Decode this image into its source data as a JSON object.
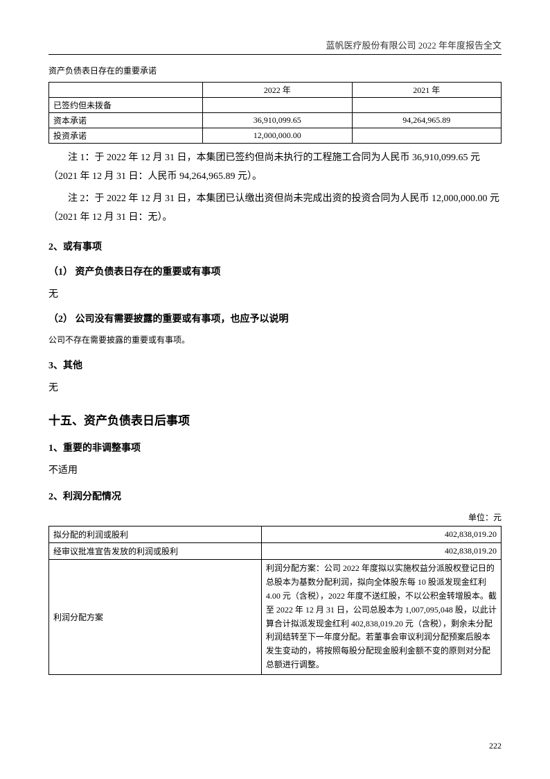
{
  "header": {
    "title": "蓝帆医疗股份有限公司 2022 年年度报告全文"
  },
  "table1": {
    "caption": "资产负债表日存在的重要承诺",
    "columns": [
      "",
      "2022 年",
      "2021 年"
    ],
    "rows": [
      {
        "label": "已签约但未拨备",
        "c2022": "",
        "c2021": ""
      },
      {
        "label": "资本承诺",
        "c2022": "36,910,099.65",
        "c2021": "94,264,965.89"
      },
      {
        "label": "投资承诺",
        "c2022": "12,000,000.00",
        "c2021": ""
      }
    ]
  },
  "notes": {
    "n1": "注 1：于 2022 年 12 月 31 日，本集团已签约但尚未执行的工程施工合同为人民币 36,910,099.65 元（2021 年 12 月 31 日：人民币 94,264,965.89 元）。",
    "n2": "注 2：于 2022 年 12 月 31 日，本集团已认缴出资但尚未完成出资的投资合同为人民币 12,000,000.00 元（2021 年 12 月 31 日：无）。"
  },
  "sections": {
    "s2": "2、或有事项",
    "s2_1": "（1）  资产负债表日存在的重要或有事项",
    "s2_1_body": "无",
    "s2_2": "（2）  公司没有需要披露的重要或有事项，也应予以说明",
    "s2_2_body": "公司不存在需要披露的重要或有事项。",
    "s3": "3、其他",
    "s3_body": "无",
    "h15": "十五、资产负债表日后事项",
    "s15_1": "1、重要的非调整事项",
    "s15_1_body": "不适用",
    "s15_2": "2、利润分配情况"
  },
  "table2": {
    "unit": "单位：元",
    "rows": [
      {
        "label": "拟分配的利润或股利",
        "value": "402,838,019.20"
      },
      {
        "label": "经审议批准宣告发放的利润或股利",
        "value": "402,838,019.20"
      }
    ],
    "plan_label": "利润分配方案",
    "plan_desc": "利润分配方案：公司 2022 年度拟以实施权益分派股权登记日的总股本为基数分配利润，拟向全体股东每 10 股派发现金红利 4.00 元（含税），2022 年度不送红股，不以公积金转增股本。截至 2022 年 12 月 31 日，公司总股本为 1,007,095,048 股，以此计算合计拟派发现金红利 402,838,019.20 元（含税），剩余未分配利润结转至下一年度分配。若董事会审议利润分配预案后股本发生变动的，将按照每股分配现金股利金额不变的原则对分配总额进行调整。"
  },
  "page_number": "222"
}
